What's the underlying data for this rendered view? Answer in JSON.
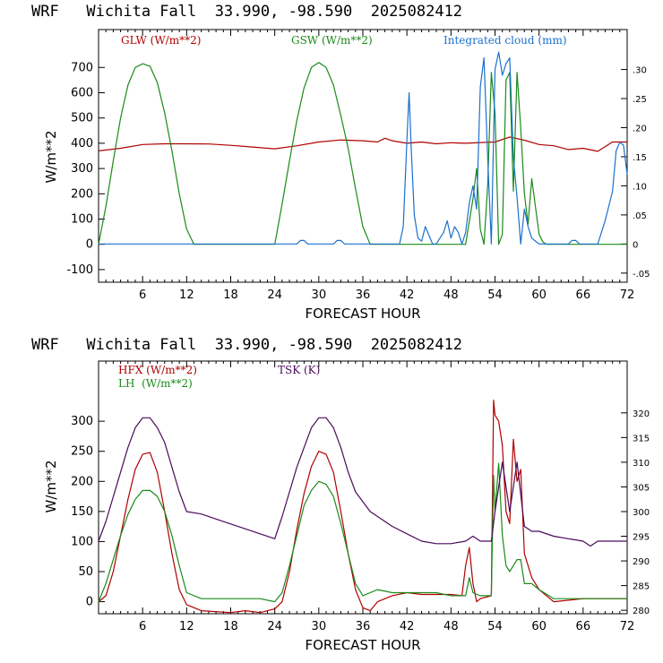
{
  "chart_data": [
    {
      "type": "line",
      "title": "WRF   Wichita Fall  33.990, -98.590  2025082412",
      "xlabel": "FORECAST HOUR",
      "ylabel": "W/m**2",
      "xlim": [
        0,
        72
      ],
      "xticks": [
        6,
        12,
        18,
        24,
        30,
        36,
        42,
        48,
        54,
        60,
        66,
        72
      ],
      "ylim": [
        -150,
        850
      ],
      "yticks": [
        -100,
        0,
        100,
        200,
        300,
        400,
        500,
        600,
        700
      ],
      "y2lim": [
        -0.0657,
        0.3686
      ],
      "y2ticks": [
        -0.05,
        0,
        0.05,
        0.1,
        0.15,
        0.2,
        0.25,
        0.3
      ],
      "y2ticklabels": [
        "-.05",
        "0",
        ".05",
        ".10",
        ".15",
        ".20",
        ".25",
        ".30"
      ],
      "grid": false,
      "series": [
        {
          "name": "GLW (W/m**2)",
          "color": "#b00000",
          "axis": "left",
          "x": [
            0,
            3,
            6,
            9,
            12,
            15,
            18,
            21,
            24,
            27,
            30,
            33,
            36,
            38,
            39,
            40,
            41,
            42,
            44,
            46,
            48,
            50,
            52,
            54,
            56,
            58,
            60,
            62,
            64,
            66,
            68,
            70,
            72
          ],
          "values": [
            370,
            380,
            395,
            398,
            398,
            397,
            392,
            385,
            378,
            390,
            405,
            413,
            410,
            405,
            420,
            410,
            405,
            400,
            405,
            398,
            402,
            400,
            403,
            405,
            425,
            412,
            395,
            390,
            375,
            380,
            368,
            405,
            405
          ]
        },
        {
          "name": "GSW (W/m**2)",
          "color": "#1a8a1a",
          "axis": "left",
          "x": [
            0,
            1,
            2,
            3,
            4,
            5,
            6,
            7,
            8,
            9,
            10,
            11,
            12,
            13,
            24,
            25,
            26,
            27,
            28,
            29,
            30,
            31,
            32,
            33,
            34,
            35,
            36,
            37,
            50,
            51,
            51.5,
            52,
            52.5,
            53,
            53.5,
            54,
            54.5,
            55,
            55.5,
            56,
            56.5,
            57,
            57.5,
            58,
            58.5,
            59,
            59.5,
            60,
            60.5,
            61,
            72
          ],
          "values": [
            0,
            150,
            330,
            500,
            630,
            700,
            715,
            705,
            640,
            520,
            370,
            200,
            60,
            0,
            0,
            160,
            330,
            490,
            620,
            700,
            720,
            700,
            630,
            510,
            380,
            220,
            70,
            0,
            0,
            180,
            300,
            60,
            0,
            230,
            680,
            520,
            0,
            40,
            650,
            680,
            210,
            680,
            460,
            200,
            80,
            260,
            150,
            40,
            10,
            0,
            0
          ]
        },
        {
          "name": "Integrated cloud (mm)",
          "color": "#1b70d0",
          "axis": "right",
          "x": [
            0,
            27,
            27.5,
            28,
            28.5,
            32,
            32.5,
            33,
            33.5,
            41,
            41.5,
            42,
            42.3,
            42.6,
            43,
            43.5,
            44,
            44.5,
            45,
            45.5,
            46,
            47,
            47.5,
            48,
            48.5,
            49,
            49.5,
            50,
            50.5,
            51,
            51.5,
            52,
            52.5,
            53,
            53.5,
            54,
            54.5,
            55,
            55.5,
            56,
            56.5,
            57,
            57.5,
            58,
            58.5,
            59,
            59.5,
            60,
            64,
            64.5,
            65,
            65.5,
            68,
            69,
            70,
            70.5,
            71,
            71.5,
            72
          ],
          "values": [
            0,
            0,
            0.006,
            0.006,
            0,
            0,
            0.006,
            0.006,
            0,
            0,
            0.03,
            0.18,
            0.26,
            0.16,
            0.05,
            0.01,
            0.005,
            0.03,
            0.015,
            0,
            0,
            0.02,
            0.04,
            0.01,
            0.03,
            0.02,
            0,
            0.02,
            0.07,
            0.1,
            0.06,
            0.27,
            0.32,
            0.15,
            0,
            0.3,
            0.33,
            0.29,
            0.31,
            0.32,
            0.15,
            0.08,
            0,
            0.06,
            0.03,
            0.01,
            0.005,
            0,
            0,
            0.006,
            0.006,
            0,
            0,
            0.04,
            0.09,
            0.16,
            0.175,
            0.17,
            0.12
          ]
        }
      ]
    },
    {
      "type": "line",
      "title": "WRF   Wichita Fall  33.990, -98.590  2025082412",
      "xlabel": "FORECAST HOUR",
      "ylabel": "W/m**2",
      "xlim": [
        0,
        72
      ],
      "xticks": [
        6,
        12,
        18,
        24,
        30,
        36,
        42,
        48,
        54,
        60,
        66,
        72
      ],
      "ylim": [
        -20,
        400
      ],
      "yticks": [
        0,
        50,
        100,
        150,
        200,
        250,
        300
      ],
      "y2lim": [
        279.3,
        330.5
      ],
      "y2ticks": [
        280,
        285,
        290,
        295,
        300,
        305,
        310,
        315,
        320
      ],
      "grid": false,
      "series": [
        {
          "name": "HFX (W/m**2)",
          "color": "#b00000",
          "axis": "left",
          "x": [
            0,
            1,
            2,
            3,
            4,
            5,
            6,
            7,
            8,
            9,
            10,
            11,
            12,
            14,
            18,
            20,
            22,
            24,
            25,
            26,
            27,
            28,
            29,
            30,
            31,
            32,
            33,
            34,
            35,
            36,
            37,
            38,
            40,
            42,
            44,
            46,
            48,
            49.5,
            50,
            50.5,
            51,
            51.5,
            52,
            53.5,
            53.8,
            54,
            54.5,
            55,
            55.5,
            56,
            56.5,
            57,
            57.5,
            58,
            58.5,
            59,
            60,
            61,
            62,
            66,
            72
          ],
          "values": [
            0,
            10,
            50,
            110,
            170,
            220,
            245,
            248,
            215,
            150,
            80,
            20,
            -5,
            -15,
            -18,
            -15,
            -18,
            -12,
            0,
            50,
            120,
            180,
            225,
            250,
            245,
            215,
            150,
            80,
            20,
            -10,
            -15,
            0,
            10,
            15,
            12,
            12,
            12,
            10,
            60,
            90,
            30,
            0,
            5,
            10,
            335,
            310,
            300,
            260,
            150,
            130,
            270,
            200,
            220,
            80,
            60,
            40,
            20,
            10,
            0,
            5,
            5
          ]
        },
        {
          "name": "LH  (W/m**2)",
          "color": "#1a8a1a",
          "axis": "left",
          "x": [
            0,
            1,
            2,
            3,
            4,
            5,
            6,
            7,
            8,
            9,
            10,
            11,
            12,
            14,
            18,
            20,
            22,
            24,
            25,
            26,
            27,
            28,
            29,
            30,
            31,
            32,
            33,
            34,
            35,
            36,
            37,
            38,
            40,
            42,
            44,
            46,
            48,
            50,
            50.5,
            51,
            52,
            53.5,
            53.8,
            54,
            54.5,
            55,
            55.5,
            56,
            57,
            57.5,
            58,
            59,
            60,
            62,
            66,
            72
          ],
          "values": [
            0,
            30,
            70,
            110,
            145,
            170,
            185,
            185,
            175,
            150,
            110,
            60,
            15,
            5,
            5,
            5,
            5,
            0,
            15,
            60,
            110,
            160,
            185,
            200,
            195,
            175,
            130,
            80,
            30,
            10,
            15,
            20,
            15,
            15,
            15,
            15,
            10,
            10,
            40,
            15,
            10,
            10,
            210,
            150,
            230,
            110,
            60,
            50,
            70,
            70,
            30,
            30,
            20,
            5,
            5,
            5
          ]
        },
        {
          "name": "TSK (K)",
          "color": "#4a0a5a",
          "axis": "right",
          "x": [
            0,
            1,
            2,
            3,
            4,
            5,
            6,
            7,
            8,
            9,
            10,
            11,
            12,
            14,
            16,
            18,
            20,
            22,
            24,
            25,
            26,
            27,
            28,
            29,
            30,
            31,
            32,
            33,
            34,
            35,
            36,
            37,
            38,
            40,
            42,
            44,
            46,
            48,
            50,
            51,
            52,
            53,
            53.5,
            54,
            55,
            56,
            57,
            58,
            59,
            60,
            62,
            64,
            66,
            67,
            68,
            70,
            72
          ],
          "values": [
            294,
            298,
            303,
            308,
            313,
            317,
            319,
            319,
            317,
            314,
            309,
            304,
            300,
            299.5,
            298.5,
            297.5,
            296.5,
            295.5,
            294.5,
            299,
            304,
            309,
            313,
            317,
            319,
            319,
            317,
            313,
            308,
            304,
            302,
            300,
            299,
            297,
            295.5,
            294,
            293.5,
            293.5,
            294,
            295,
            294,
            294,
            294,
            300,
            310,
            300,
            310,
            297,
            296,
            296,
            295,
            294.5,
            294,
            293,
            294,
            294,
            294
          ]
        }
      ]
    }
  ]
}
